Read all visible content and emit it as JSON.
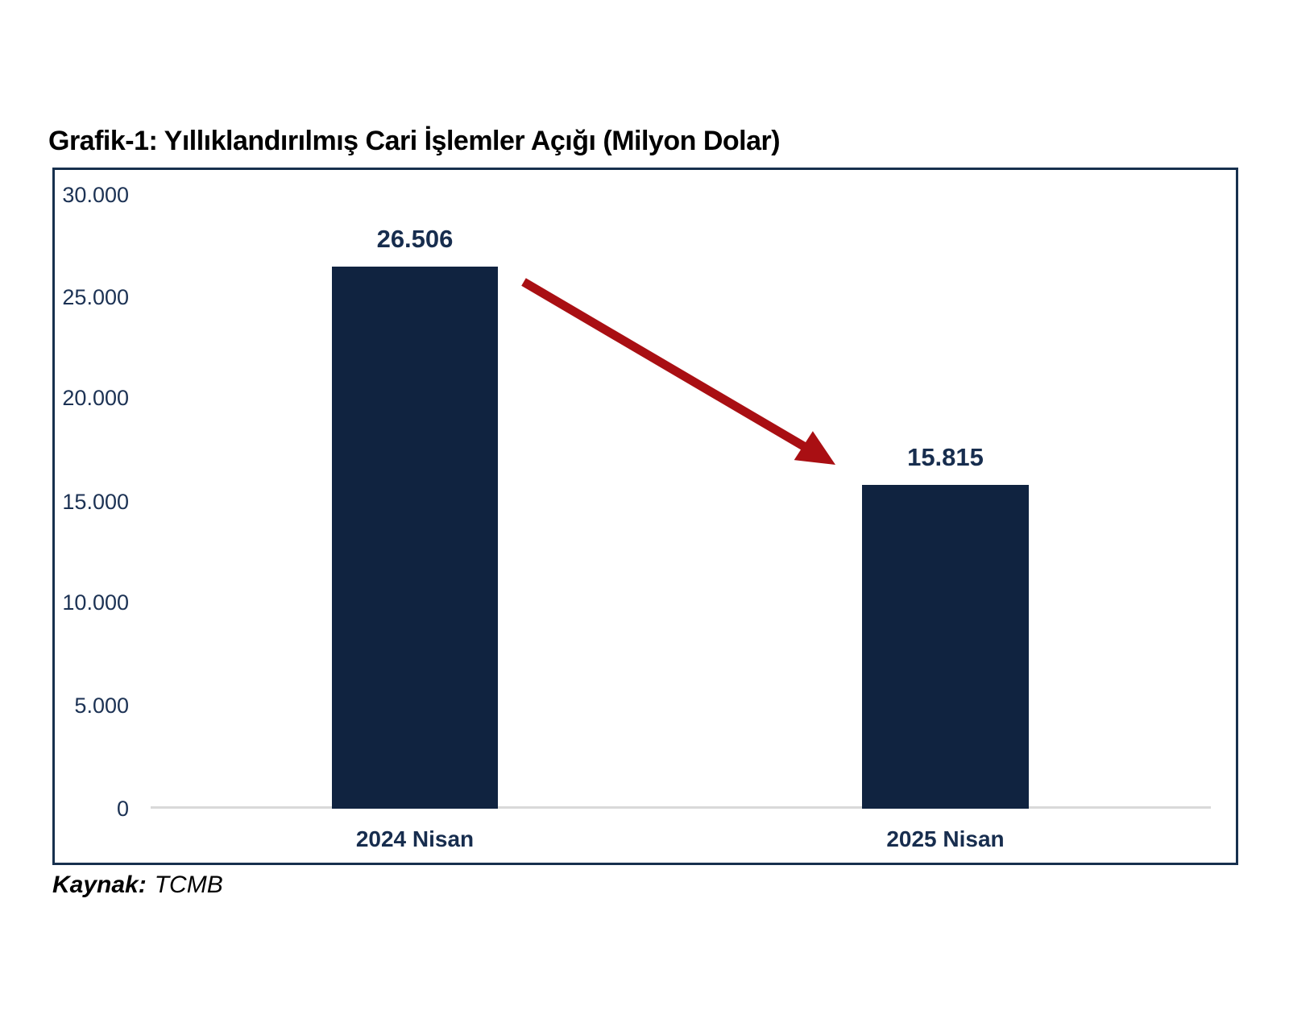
{
  "title": "Grafik-1: Yıllıklandırılmış Cari İşlemler Açığı (Milyon Dolar)",
  "source": {
    "label": "Kaynak:",
    "value": "TCMB"
  },
  "chart_data": {
    "type": "bar",
    "title": "Grafik-1: Yıllıklandırılmış Cari İşlemler Açığı (Milyon Dolar)",
    "categories": [
      "2024 Nisan",
      "2025 Nisan"
    ],
    "values": [
      26506,
      15815
    ],
    "value_labels": [
      "26.506",
      "15.815"
    ],
    "ylim": [
      0,
      30000
    ],
    "ytick_step": 5000,
    "ytick_labels": [
      "30.000",
      "25.000",
      "20.000",
      "15.000",
      "10.000",
      "5.000",
      "0"
    ],
    "grid": "off",
    "legend": "none",
    "bar_color": "#102340",
    "text_color": "#172d4e",
    "annotation": {
      "type": "arrow",
      "meaning": "decrease from 2024 Nisan to 2025 Nisan",
      "color": "#a90f13"
    }
  }
}
